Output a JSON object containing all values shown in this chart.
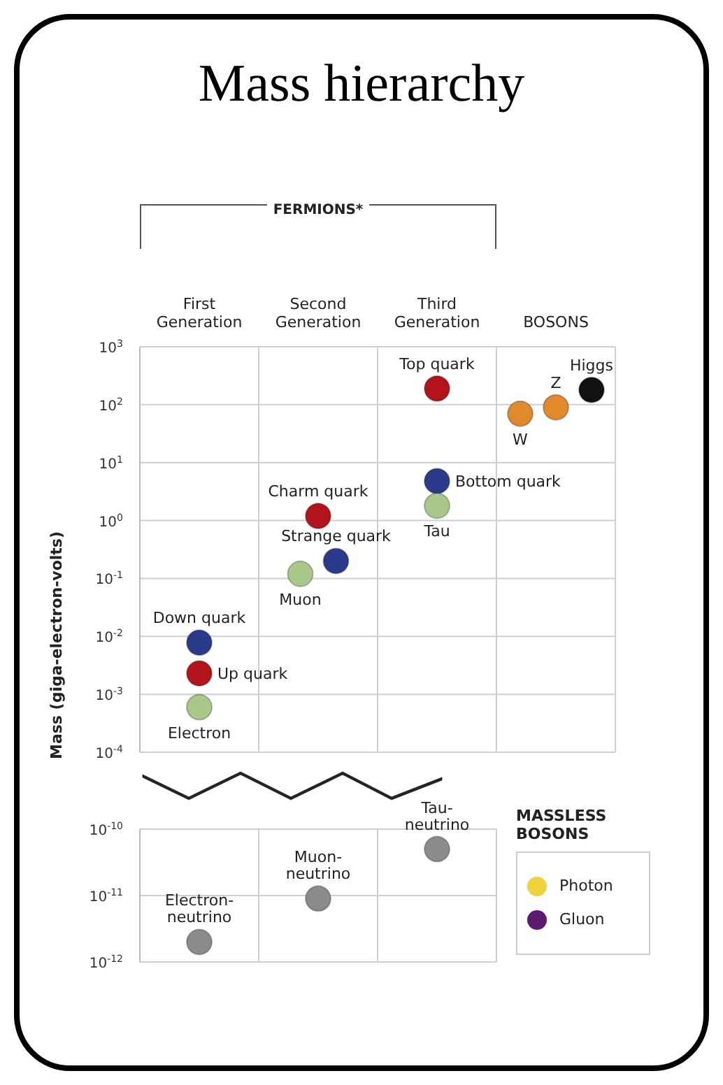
{
  "chart_data": [
    {
      "type": "scatter",
      "title": "Mass hierarchy",
      "ylabel": "Mass (giga-electron-volts)",
      "annotations": [
        "FERMIONS*"
      ],
      "categories": [
        "First Generation",
        "Second Generation",
        "Third Generation",
        "BOSONS"
      ],
      "log": "y",
      "grid": true,
      "marker": "circle",
      "ylim": [
        0.0001,
        1000
      ],
      "yticks": [
        {
          "value": 0.0001,
          "label": "10$^{-4}$"
        },
        {
          "value": 0.001,
          "label": "10$^{-3}$"
        },
        {
          "value": 0.01,
          "label": "10$^{-2}$"
        },
        {
          "value": 0.1,
          "label": "10$^{-1}$"
        },
        {
          "value": 1,
          "label": "10$^{0}$"
        },
        {
          "value": 10,
          "label": "10$^{1}$"
        },
        {
          "value": 100,
          "label": "10$^{2}$"
        },
        {
          "value": 1000,
          "label": "10$^{3}$"
        }
      ],
      "series": [
        {
          "name": "Down quark",
          "color": "#2b3b8c",
          "x": [
            "First Generation"
          ],
          "values": [
            0.0078
          ]
        },
        {
          "name": "Up quark",
          "color": "#b3141b",
          "x": [
            "First Generation"
          ],
          "values": [
            0.0023
          ]
        },
        {
          "name": "Electron",
          "color": "#a9c98a",
          "x": [
            "First Generation"
          ],
          "values": [
            0.0006
          ]
        },
        {
          "name": "Charm quark",
          "color": "#b3141b",
          "x": [
            "Second Generation"
          ],
          "values": [
            1.2
          ]
        },
        {
          "name": "Strange quark",
          "color": "#2b3b8c",
          "x": [
            "Second Generation"
          ],
          "values": [
            0.2
          ]
        },
        {
          "name": "Muon",
          "color": "#a9c98a",
          "x": [
            "Second Generation"
          ],
          "values": [
            0.12
          ]
        },
        {
          "name": "Top quark",
          "color": "#b3141b",
          "x": [
            "Third Generation"
          ],
          "values": [
            190
          ]
        },
        {
          "name": "Bottom quark",
          "color": "#2b3b8c",
          "x": [
            "Third Generation"
          ],
          "values": [
            4.8
          ]
        },
        {
          "name": "Tau",
          "color": "#a9c98a",
          "x": [
            "Third Generation"
          ],
          "values": [
            1.8
          ]
        },
        {
          "name": "W",
          "color": "#e08a2c",
          "x": [
            "BOSONS"
          ],
          "values": [
            70
          ]
        },
        {
          "name": "Z",
          "color": "#e08a2c",
          "x": [
            "BOSONS"
          ],
          "values": [
            90
          ]
        },
        {
          "name": "Higgs",
          "color": "#111111",
          "x": [
            "BOSONS"
          ],
          "values": [
            180
          ]
        }
      ]
    },
    {
      "type": "scatter",
      "categories": [
        "First Generation",
        "Second Generation",
        "Third Generation"
      ],
      "tick_labels": "y",
      "log": "y",
      "grid": true,
      "marker": "circle",
      "ylim": [
        1e-12,
        1e-10
      ],
      "legend": "right",
      "legend_title": "MASSLESS BOSONS",
      "yticks": [
        {
          "value": 1e-12,
          "label": "10$^{-12}$"
        },
        {
          "value": 1e-11,
          "label": "10$^{-11}$"
        },
        {
          "value": 1e-10,
          "label": "10$^{-10}$"
        }
      ],
      "series": [
        {
          "name": "Electron-neutrino",
          "color": "#8c8a8c",
          "x": [
            "First Generation"
          ],
          "values": [
            2e-12
          ]
        },
        {
          "name": "Muon-neutrino",
          "color": "#8c8a8c",
          "x": [
            "Second Generation"
          ],
          "values": [
            9e-12
          ]
        },
        {
          "name": "Tau-neutrino",
          "color": "#8c8a8c",
          "x": [
            "Third Generation"
          ],
          "values": [
            5e-11
          ]
        },
        {
          "name": "Photon",
          "color": "#f0d23c",
          "values": [
            null,
            null,
            null
          ]
        },
        {
          "name": "Gluon",
          "color": "#5c1a6e",
          "values": [
            null,
            null,
            null
          ]
        }
      ]
    }
  ]
}
